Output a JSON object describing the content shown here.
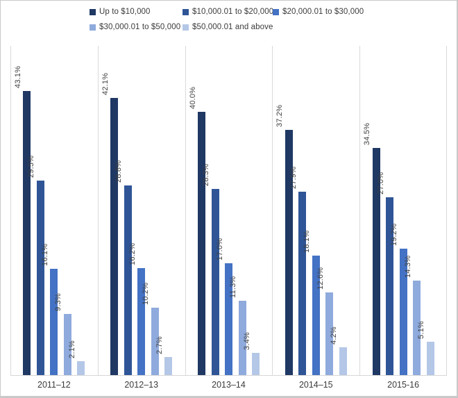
{
  "chart_data": {
    "type": "bar",
    "title": "",
    "xlabel": "",
    "ylabel": "",
    "value_suffix": "%",
    "ylim": [
      0,
      50
    ],
    "grid": "vertical category separators only",
    "legend_position": "top",
    "data_labels": "rotated 90 degrees above each bar",
    "categories": [
      "2011–12",
      "2012–13",
      "2013–14",
      "2014–15",
      "2015-16"
    ],
    "series": [
      {
        "name": "Up to $10,000",
        "color": "#1F3864",
        "values": [
          43.1,
          42.1,
          40.0,
          37.2,
          34.5
        ]
      },
      {
        "name": "$10,000.01 to $20,000",
        "color": "#2F5597",
        "values": [
          29.5,
          28.8,
          28.3,
          27.9,
          27.0
        ]
      },
      {
        "name": "$20,000.01 to $30,000",
        "color": "#4472C4",
        "values": [
          16.1,
          16.2,
          17.0,
          18.1,
          19.2
        ]
      },
      {
        "name": "$30,000.01 to $50,000",
        "color": "#8FAADC",
        "values": [
          9.3,
          10.2,
          11.3,
          12.6,
          14.3
        ]
      },
      {
        "name": "$50,000.01 and above",
        "color": "#B4C7E7",
        "values": [
          2.1,
          2.7,
          3.4,
          4.2,
          5.1
        ]
      }
    ]
  },
  "colors": {
    "axis_line": "#d9d9d9",
    "text": "#3b3b3b",
    "frame_border": "#c9c9c9"
  }
}
